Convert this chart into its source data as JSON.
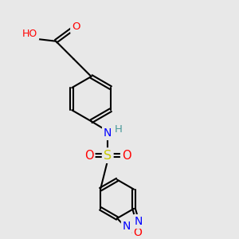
{
  "background_color": "#e8e8e8",
  "atom_colors": {
    "C": "#000000",
    "H": "#4a9a9a",
    "O": "#ff0000",
    "N": "#0000ff",
    "S": "#c8c800"
  },
  "bond_lw": 1.5,
  "font_size": 9.5,
  "xlim": [
    0,
    10
  ],
  "ylim": [
    0,
    10
  ]
}
